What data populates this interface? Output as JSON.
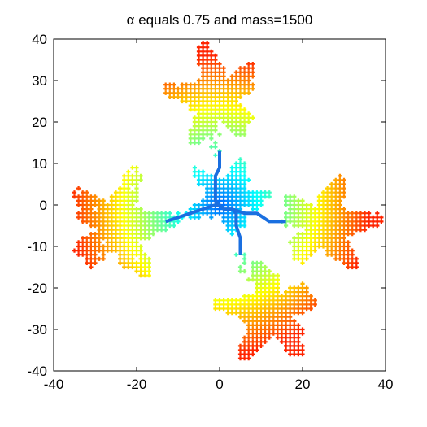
{
  "chart_data": {
    "type": "scatter",
    "title": "α equals 0.75 and mass=1500",
    "xlabel": "",
    "ylabel": "",
    "xlim": [
      -40,
      40
    ],
    "ylim": [
      -40,
      40
    ],
    "x_ticks": [
      "-40",
      "-20",
      "0",
      "20",
      "40"
    ],
    "y_ticks": [
      "40",
      "30",
      "20",
      "10",
      "0",
      "-10",
      "-20",
      "-30",
      "-40"
    ],
    "grid": false,
    "legend": "none",
    "mass": 1500,
    "alpha": 0.75,
    "marker": "+",
    "colormap": "jet",
    "colors": {
      "backbone": "#1a6fe0",
      "core": "#1e6fd8",
      "mid": "#2fd0c8",
      "outer": "#b8e040",
      "tip": "#e8701a"
    },
    "backbone": [
      [
        [
          0,
          0
        ],
        [
          1,
          -1
        ],
        [
          2,
          -1
        ],
        [
          3,
          -1
        ],
        [
          4,
          -2
        ],
        [
          4,
          -5
        ],
        [
          5,
          -8
        ],
        [
          5,
          -12
        ]
      ],
      [
        [
          0,
          0
        ],
        [
          -1,
          0
        ],
        [
          -4,
          -1
        ],
        [
          -7,
          -2
        ],
        [
          -10,
          -3
        ],
        [
          -13,
          -4
        ]
      ],
      [
        [
          0,
          0
        ],
        [
          -1,
          1
        ],
        [
          -1,
          4
        ],
        [
          -1,
          7
        ],
        [
          0,
          9
        ],
        [
          0,
          13
        ]
      ],
      [
        [
          3,
          -1
        ],
        [
          6,
          -2
        ],
        [
          9,
          -2
        ],
        [
          12,
          -4
        ],
        [
          16,
          -4
        ]
      ]
    ],
    "arms": [
      {
        "name": "up",
        "cx": -1,
        "cy": 26,
        "rx": 10,
        "ry": 11,
        "count": 330
      },
      {
        "name": "down",
        "cx": 12,
        "cy": -26,
        "rx": 11,
        "ry": 11,
        "count": 330
      },
      {
        "name": "left",
        "cx": -24,
        "cy": -5,
        "rx": 12,
        "ry": 12,
        "count": 330
      },
      {
        "name": "right",
        "cx": 26,
        "cy": -5,
        "rx": 11,
        "ry": 10,
        "count": 330
      },
      {
        "name": "core",
        "cx": 2,
        "cy": 2,
        "rx": 9,
        "ry": 8,
        "count": 180
      }
    ]
  }
}
